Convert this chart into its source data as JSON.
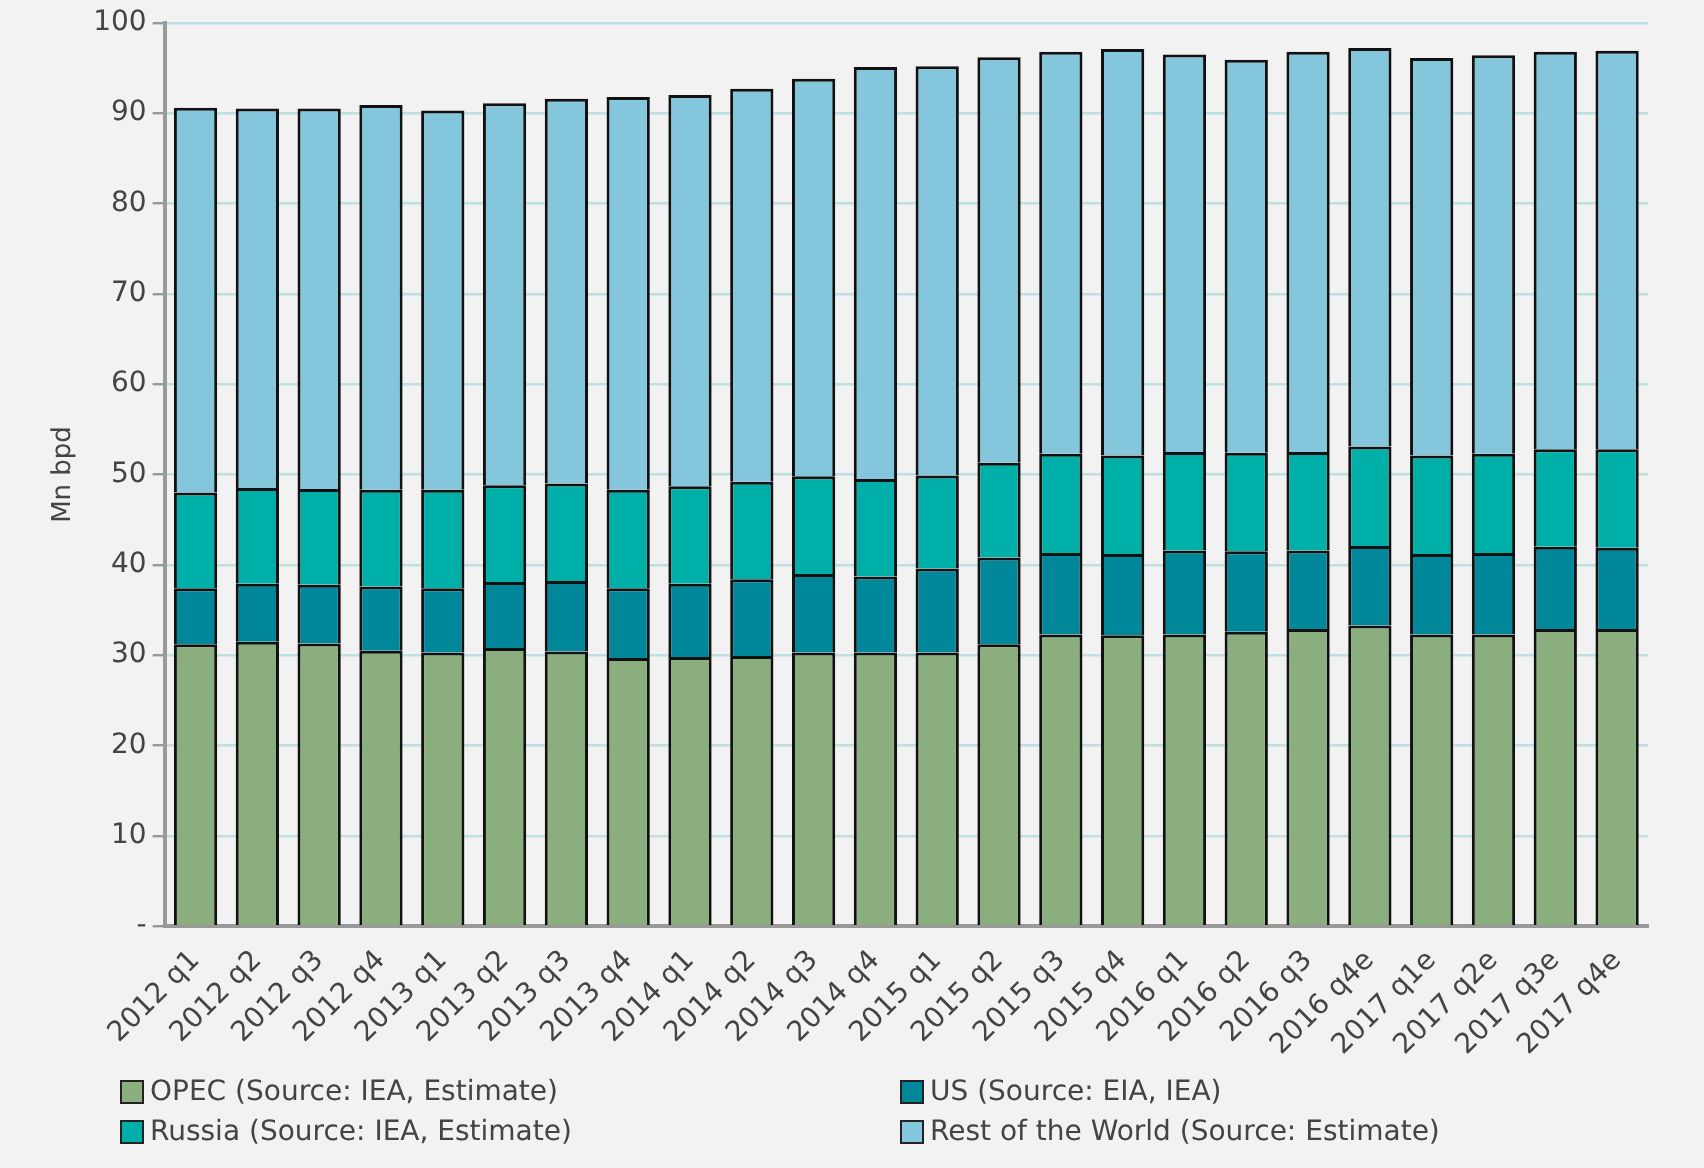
{
  "chart_data": {
    "type": "bar",
    "stacked": true,
    "ylabel": "Mn bpd",
    "categories": [
      "2012 q1",
      "2012 q2",
      "2012 q3",
      "2012 q4",
      "2013 q1",
      "2013 q2",
      "2013 q3",
      "2013 q4",
      "2014 q1",
      "2014 q2",
      "2014 q3",
      "2014 q4",
      "2015 q1",
      "2015 q2",
      "2015 q3",
      "2015 q4",
      "2016 q1",
      "2016 q2",
      "2016 q3",
      "2016 q4e",
      "2017 q1e",
      "2017 q2e",
      "2017 q3e",
      "2017 q4e"
    ],
    "series": [
      {
        "name": "OPEC (Source: IEA, Estimate)",
        "color": "#8aae7e",
        "values": [
          31.2,
          31.5,
          31.3,
          30.5,
          30.3,
          30.8,
          30.4,
          29.7,
          29.8,
          29.9,
          30.3,
          30.3,
          30.3,
          31.2,
          32.3,
          32.2,
          32.3,
          32.6,
          32.9,
          33.3,
          32.3,
          32.3,
          32.9,
          32.9
        ]
      },
      {
        "name": "US (Source: EIA, IEA)",
        "color": "#00889a",
        "values": [
          6.2,
          6.4,
          6.5,
          7.1,
          7.1,
          7.3,
          7.8,
          7.7,
          8.1,
          8.5,
          8.7,
          8.4,
          9.3,
          9.6,
          9.0,
          9.0,
          9.3,
          8.9,
          8.7,
          8.8,
          8.9,
          9.0,
          9.1,
          9.0
        ]
      },
      {
        "name": "Russia (Source: IEA, Estimate)",
        "color": "#00b0a8",
        "values": [
          10.6,
          10.6,
          10.6,
          10.7,
          10.9,
          10.7,
          10.8,
          10.9,
          10.8,
          10.8,
          10.8,
          10.8,
          10.3,
          10.5,
          11.0,
          10.9,
          10.9,
          10.9,
          10.9,
          11.0,
          10.9,
          11.0,
          10.8,
          10.9
        ]
      },
      {
        "name": "Rest of the World (Source: Estimate)",
        "color": "#84c6dc",
        "values": [
          42.6,
          42.0,
          42.1,
          42.6,
          42.0,
          42.3,
          42.6,
          43.5,
          43.3,
          43.5,
          44.0,
          45.6,
          45.3,
          44.9,
          44.5,
          45.0,
          44.0,
          43.5,
          44.3,
          44.1,
          44.0,
          44.1,
          44.0,
          44.1
        ]
      }
    ],
    "ylim": [
      0,
      100
    ],
    "yticks": [
      {
        "value": 0,
        "label": "-"
      },
      10,
      20,
      30,
      40,
      50,
      60,
      70,
      80,
      90,
      100
    ],
    "grid": "y",
    "legend": "bottom"
  }
}
